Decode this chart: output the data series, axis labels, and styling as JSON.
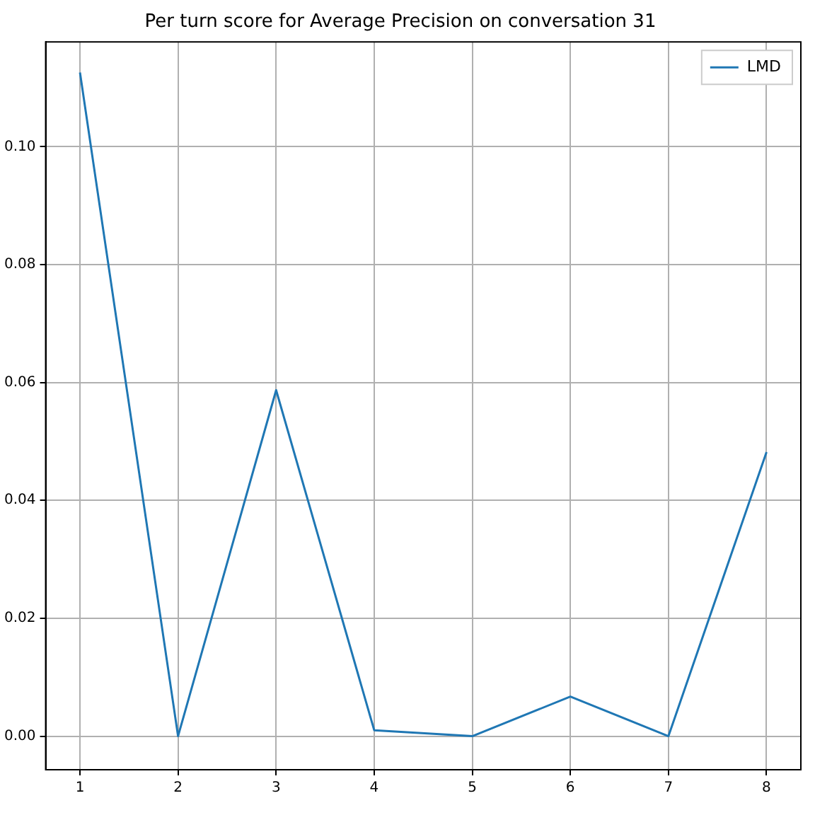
{
  "chart_data": {
    "type": "line",
    "title": "Per turn score for Average Precision on conversation 31",
    "x": [
      1,
      2,
      3,
      4,
      5,
      6,
      7,
      8
    ],
    "series": [
      {
        "name": "LMD",
        "color": "#1f77b4",
        "values": [
          0.1126,
          0,
          0.0587,
          0.001,
          0,
          0.0067,
          0,
          0.0482
        ]
      }
    ],
    "xlim": [
      0.65,
      8.35
    ],
    "xticks": [
      1,
      2,
      3,
      4,
      5,
      6,
      7,
      8
    ],
    "ylim": [
      -0.0057,
      0.1178
    ],
    "yticks": [
      {
        "value": 0,
        "label": "0.00"
      },
      {
        "value": 0.02,
        "label": "0.02"
      },
      {
        "value": 0.04,
        "label": "0.04"
      },
      {
        "value": 0.06,
        "label": "0.06"
      },
      {
        "value": 0.08,
        "label": "0.08"
      },
      {
        "value": 0.1,
        "label": "0.10"
      }
    ],
    "grid": true,
    "legend": "top right",
    "marker": "none",
    "line_style": "solid"
  }
}
